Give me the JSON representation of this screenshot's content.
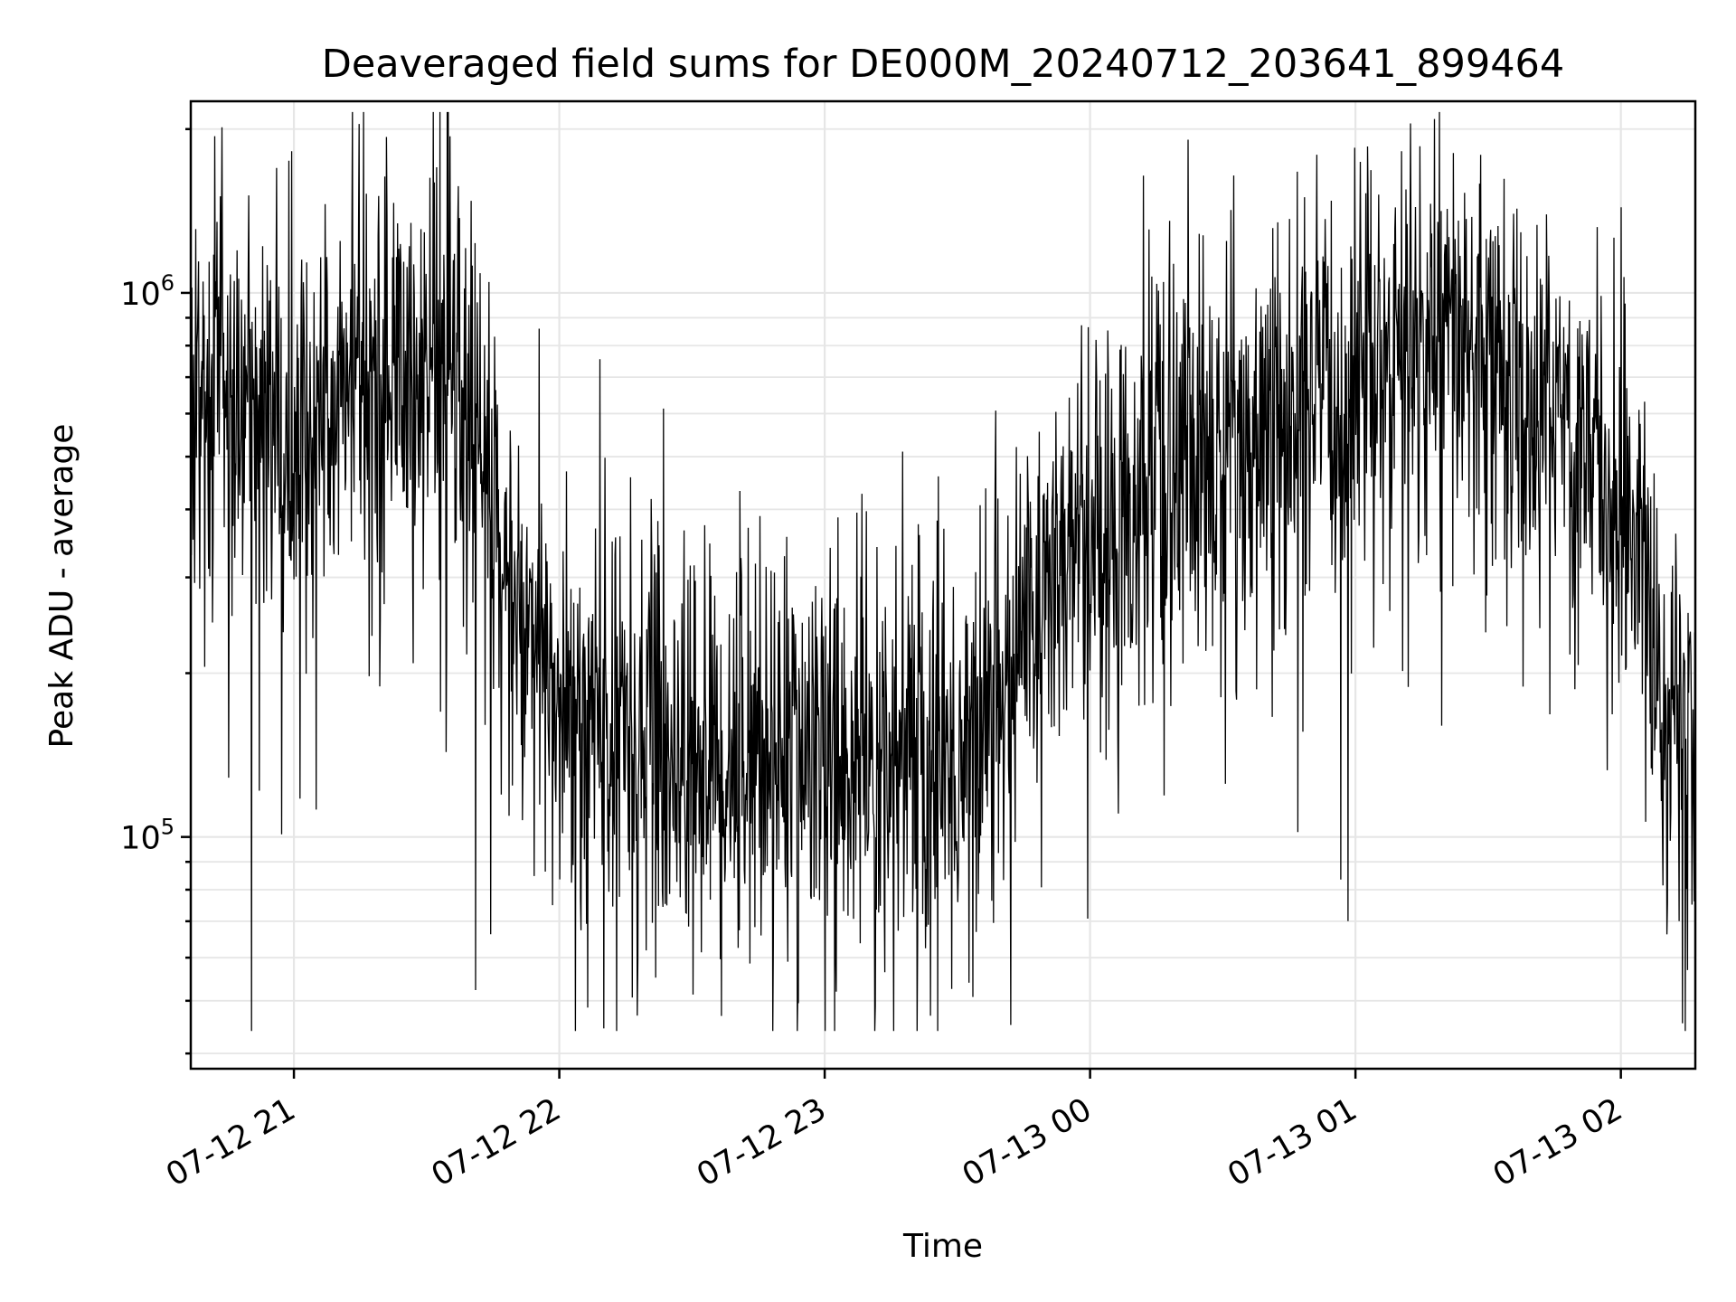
{
  "chart_data": {
    "type": "line",
    "title": "Deaveraged field sums for DE000M_20240712_203641_899464",
    "xlabel": "Time",
    "ylabel": "Peak ADU - average",
    "yscale": "log",
    "grid": true,
    "xlim": [
      "2024-07-12 20:36:41",
      "2024-07-13 02:16:50"
    ],
    "ylim": [
      37500,
      2250000
    ],
    "x_ticks": [
      {
        "value": "2024-07-12 21:00:00",
        "label": "07-12 21"
      },
      {
        "value": "2024-07-12 22:00:00",
        "label": "07-12 22"
      },
      {
        "value": "2024-07-12 23:00:00",
        "label": "07-12 23"
      },
      {
        "value": "2024-07-13 00:00:00",
        "label": "07-13 00"
      },
      {
        "value": "2024-07-13 01:00:00",
        "label": "07-13 01"
      },
      {
        "value": "2024-07-13 02:00:00",
        "label": "07-13 02"
      }
    ],
    "y_ticks": [
      {
        "value": 100000,
        "base": "10",
        "exp": "5"
      },
      {
        "value": 1000000,
        "base": "10",
        "exp": "6"
      }
    ],
    "series": [
      {
        "color": "#000000",
        "envelope": [
          {
            "x": "2024-07-12 20:36:41",
            "y": 600000
          },
          {
            "x": "2024-07-12 20:45:00",
            "y": 650000
          },
          {
            "x": "2024-07-12 21:00:00",
            "y": 520000
          },
          {
            "x": "2024-07-12 21:15:00",
            "y": 700000
          },
          {
            "x": "2024-07-12 21:30:00",
            "y": 720000
          },
          {
            "x": "2024-07-12 21:40:00",
            "y": 600000
          },
          {
            "x": "2024-07-12 21:50:00",
            "y": 250000
          },
          {
            "x": "2024-07-12 22:00:00",
            "y": 170000
          },
          {
            "x": "2024-07-12 22:15:00",
            "y": 150000
          },
          {
            "x": "2024-07-12 22:30:00",
            "y": 140000
          },
          {
            "x": "2024-07-12 23:00:00",
            "y": 140000
          },
          {
            "x": "2024-07-12 23:30:00",
            "y": 135000
          },
          {
            "x": "2024-07-12 23:45:00",
            "y": 250000
          },
          {
            "x": "2024-07-13 00:00:00",
            "y": 380000
          },
          {
            "x": "2024-07-13 00:30:00",
            "y": 500000
          },
          {
            "x": "2024-07-13 01:00:00",
            "y": 650000
          },
          {
            "x": "2024-07-13 01:15:00",
            "y": 800000
          },
          {
            "x": "2024-07-13 01:30:00",
            "y": 750000
          },
          {
            "x": "2024-07-13 01:50:00",
            "y": 550000
          },
          {
            "x": "2024-07-13 02:00:00",
            "y": 450000
          },
          {
            "x": "2024-07-13 02:10:00",
            "y": 180000
          },
          {
            "x": "2024-07-13 02:16:50",
            "y": 130000
          }
        ]
      }
    ]
  }
}
